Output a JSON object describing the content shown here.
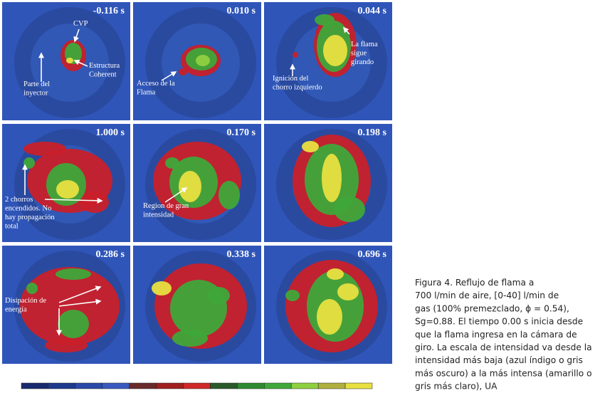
{
  "panels": [
    {
      "time": "-0.116 s",
      "notes": [
        [
          "CVP"
        ],
        [
          "Estructura",
          "Coherent"
        ],
        [
          "Parte del",
          "inyector"
        ]
      ]
    },
    {
      "time": "0.010 s",
      "notes": [
        [
          "Acceso de la",
          "Flama"
        ]
      ]
    },
    {
      "time": "0.044 s",
      "notes": [
        [
          "La flama",
          "sigue",
          "girando"
        ],
        [
          "Ignición del",
          "chorro izquierdo"
        ]
      ]
    },
    {
      "time": "1.000 s",
      "notes": [
        [
          "2 chorros",
          "encendidos. No",
          "hay propagación",
          "total"
        ]
      ]
    },
    {
      "time": "0.170 s",
      "notes": [
        [
          "Region de gran",
          "intensidad"
        ]
      ]
    },
    {
      "time": "0.198 s",
      "notes": []
    },
    {
      "time": "0.286 s",
      "notes": [
        [
          "Disipación de",
          "energía"
        ]
      ]
    },
    {
      "time": "0.338 s",
      "notes": []
    },
    {
      "time": "0.696 s",
      "notes": []
    }
  ],
  "caption": [
    "Figura 4. Reflujo de flama a",
    "700 l/min de aire, [0-40] l/min de",
    "gas (100% premezclado, ϕ = 0.54),",
    "Sg=0.88. El tiempo 0.00 s inicia desde",
    "que la flama ingresa en la cámara de",
    "giro. La escala de intensidad va desde la",
    "intensidad más baja (azul índigo o gris",
    "más oscuro) a la más intensa (amarillo o",
    "gris más claro), UA"
  ]
}
